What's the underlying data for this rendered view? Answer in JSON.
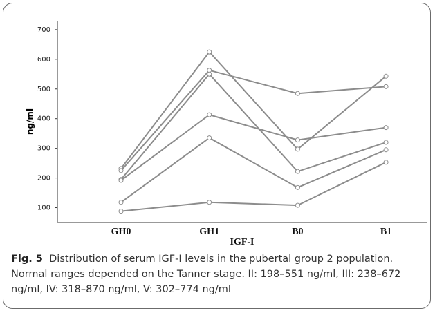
{
  "chart_data": {
    "type": "line",
    "ylabel": "ng/ml",
    "xlabel": "IGF-I",
    "categories": [
      "GH0",
      "GH1",
      "B0",
      "B1"
    ],
    "series": [
      {
        "color": "#8c8c8c",
        "values": [
          232,
          625,
          297,
          543
        ]
      },
      {
        "color": "#8c8c8c",
        "values": [
          225,
          563,
          485,
          508
        ]
      },
      {
        "color": "#8c8c8c",
        "values": [
          195,
          550,
          222,
          320
        ]
      },
      {
        "color": "#8c8c8c",
        "values": [
          192,
          413,
          328,
          370
        ]
      },
      {
        "color": "#8c8c8c",
        "values": [
          118,
          335,
          168,
          295
        ]
      },
      {
        "color": "#8c8c8c",
        "values": [
          88,
          118,
          108,
          253
        ]
      }
    ],
    "ylim": [
      50,
      730
    ],
    "yticks": [
      100,
      200,
      300,
      400,
      500,
      600,
      700
    ],
    "caption_label": "Fig. 5",
    "caption": "Distribution of serum IGF-I levels in the pubertal group 2 population. Normal ranges depended on the Tanner stage. II: 198–551 ng/ml, III: 238–672 ng/ml, IV: 318–870 ng/ml, V: 302–774 ng/ml"
  }
}
